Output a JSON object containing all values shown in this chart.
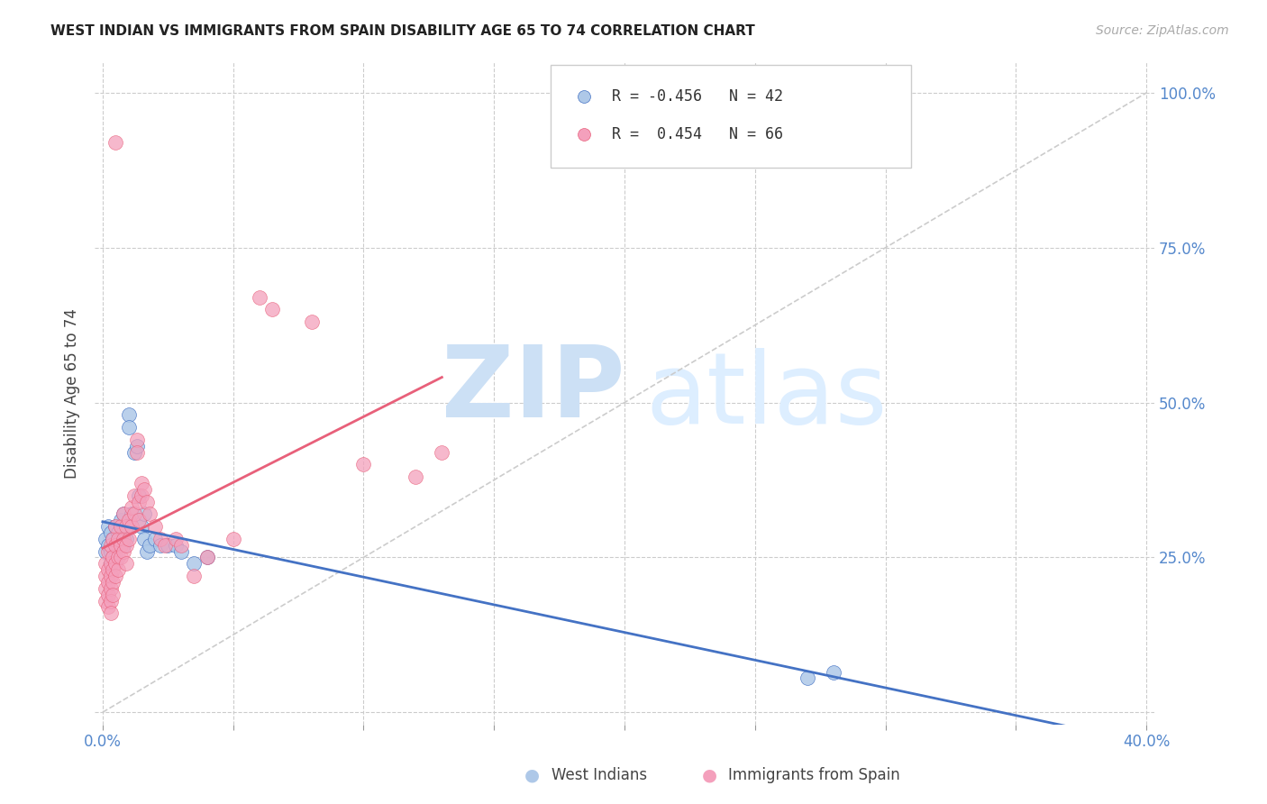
{
  "title": "WEST INDIAN VS IMMIGRANTS FROM SPAIN DISABILITY AGE 65 TO 74 CORRELATION CHART",
  "source": "Source: ZipAtlas.com",
  "ylabel": "Disability Age 65 to 74",
  "xmin": 0.0,
  "xmax": 0.4,
  "ymin": 0.0,
  "ymax": 1.05,
  "yticks": [
    0.0,
    0.25,
    0.5,
    0.75,
    1.0
  ],
  "ytick_labels_right": [
    "",
    "25.0%",
    "50.0%",
    "75.0%",
    "100.0%"
  ],
  "xticks": [
    0.0,
    0.05,
    0.1,
    0.15,
    0.2,
    0.25,
    0.3,
    0.35,
    0.4
  ],
  "blue_color": "#aec8e8",
  "pink_color": "#f4a0bc",
  "blue_line_color": "#4472c4",
  "pink_line_color": "#e8607a",
  "blue_scatter_x": [
    0.001,
    0.001,
    0.002,
    0.002,
    0.003,
    0.003,
    0.003,
    0.004,
    0.004,
    0.005,
    0.005,
    0.005,
    0.006,
    0.006,
    0.007,
    0.007,
    0.008,
    0.008,
    0.008,
    0.009,
    0.009,
    0.01,
    0.01,
    0.011,
    0.011,
    0.012,
    0.013,
    0.014,
    0.015,
    0.016,
    0.016,
    0.017,
    0.018,
    0.02,
    0.022,
    0.025,
    0.028,
    0.03,
    0.035,
    0.04,
    0.27,
    0.28
  ],
  "blue_scatter_y": [
    0.28,
    0.26,
    0.3,
    0.27,
    0.29,
    0.26,
    0.24,
    0.28,
    0.25,
    0.3,
    0.27,
    0.25,
    0.29,
    0.27,
    0.31,
    0.28,
    0.32,
    0.29,
    0.27,
    0.3,
    0.28,
    0.48,
    0.46,
    0.32,
    0.3,
    0.42,
    0.43,
    0.35,
    0.3,
    0.28,
    0.32,
    0.26,
    0.27,
    0.28,
    0.27,
    0.27,
    0.27,
    0.26,
    0.24,
    0.25,
    0.055,
    0.065
  ],
  "pink_scatter_x": [
    0.001,
    0.001,
    0.001,
    0.001,
    0.002,
    0.002,
    0.002,
    0.002,
    0.002,
    0.003,
    0.003,
    0.003,
    0.003,
    0.003,
    0.003,
    0.004,
    0.004,
    0.004,
    0.004,
    0.004,
    0.005,
    0.005,
    0.005,
    0.005,
    0.005,
    0.006,
    0.006,
    0.006,
    0.007,
    0.007,
    0.007,
    0.008,
    0.008,
    0.008,
    0.009,
    0.009,
    0.009,
    0.01,
    0.01,
    0.011,
    0.011,
    0.012,
    0.012,
    0.013,
    0.013,
    0.014,
    0.014,
    0.015,
    0.015,
    0.016,
    0.017,
    0.018,
    0.02,
    0.022,
    0.024,
    0.028,
    0.03,
    0.035,
    0.04,
    0.05,
    0.06,
    0.065,
    0.08,
    0.1,
    0.12,
    0.13
  ],
  "pink_scatter_y": [
    0.24,
    0.22,
    0.2,
    0.18,
    0.26,
    0.23,
    0.21,
    0.19,
    0.17,
    0.27,
    0.24,
    0.22,
    0.2,
    0.18,
    0.16,
    0.28,
    0.25,
    0.23,
    0.21,
    0.19,
    0.92,
    0.3,
    0.27,
    0.24,
    0.22,
    0.28,
    0.25,
    0.23,
    0.3,
    0.27,
    0.25,
    0.32,
    0.28,
    0.26,
    0.3,
    0.27,
    0.24,
    0.31,
    0.28,
    0.33,
    0.3,
    0.35,
    0.32,
    0.44,
    0.42,
    0.34,
    0.31,
    0.37,
    0.35,
    0.36,
    0.34,
    0.32,
    0.3,
    0.28,
    0.27,
    0.28,
    0.27,
    0.22,
    0.25,
    0.28,
    0.67,
    0.65,
    0.63,
    0.4,
    0.38,
    0.42
  ]
}
